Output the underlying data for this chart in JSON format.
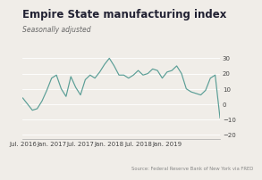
{
  "title": "Empire State manufacturing index",
  "subtitle": "Seasonally adjusted",
  "source": "Source: Federal Reserve Bank of New York via FRED",
  "line_color": "#5a9e96",
  "background_color": "#f0ede8",
  "x_tick_labels": [
    "Jul. 2016",
    "Jan. 2017",
    "Jul. 2017",
    "Jan. 2018",
    "Jul. 2018",
    "Jan. 2019"
  ],
  "y_ticks": [
    -20,
    -10,
    0,
    10,
    20,
    30
  ],
  "ylim": [
    -23,
    34
  ],
  "values": [
    4.0,
    0.0,
    -4.0,
    -3.0,
    2.0,
    9.0,
    17.0,
    19.0,
    10.0,
    5.0,
    18.0,
    11.0,
    6.0,
    16.0,
    19.0,
    17.0,
    21.0,
    26.0,
    30.0,
    25.0,
    19.0,
    19.0,
    17.0,
    19.0,
    22.0,
    19.0,
    20.0,
    23.0,
    22.0,
    17.0,
    21.0,
    22.0,
    25.0,
    20.0,
    10.0,
    8.0,
    7.0,
    6.0,
    9.0,
    17.0,
    19.0,
    -9.0
  ],
  "tick_indices": [
    0,
    6,
    12,
    18,
    24,
    30
  ],
  "title_fontsize": 8.5,
  "subtitle_fontsize": 5.5,
  "tick_fontsize": 5.0,
  "source_fontsize": 3.8
}
